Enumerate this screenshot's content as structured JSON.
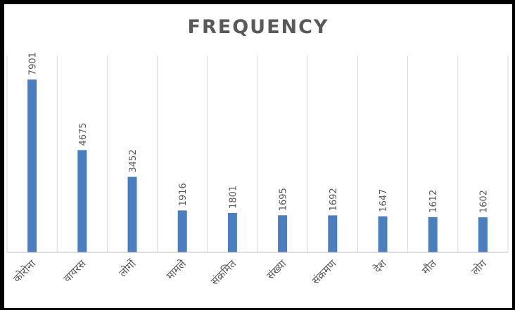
{
  "chart_data": {
    "type": "bar",
    "title": "FREQUENCY",
    "categories": [
      "कोरोना",
      "वायरस",
      "लोगों",
      "मामले",
      "संक्रमित",
      "संख्या",
      "संक्रमण",
      "देश",
      "मौत",
      "लोग"
    ],
    "values": [
      7901,
      4675,
      3452,
      1916,
      1801,
      1695,
      1692,
      1647,
      1612,
      1602
    ],
    "ylim": [
      0,
      9000
    ],
    "grid": "vertical-category-separators",
    "legend": "none",
    "colors": {
      "bar": "#4a7ebf",
      "text": "#595959",
      "grid": "#d9d9d9",
      "border": "#000000",
      "background": "#ffffff"
    }
  }
}
